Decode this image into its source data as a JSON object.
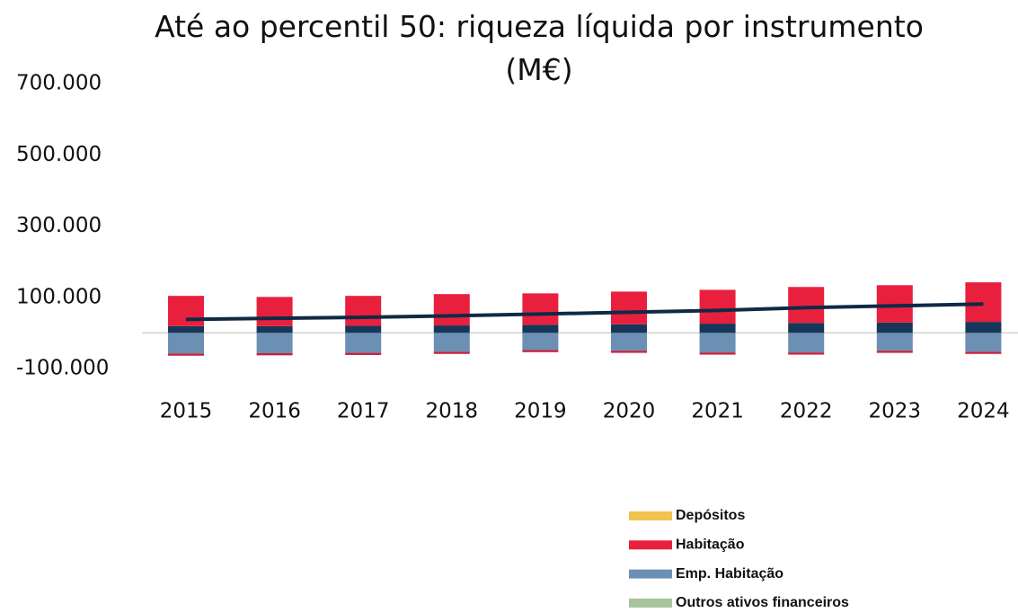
{
  "chart_data": {
    "type": "bar",
    "title": "Até ao percentil 50: riqueza líquida por instrumento (M€)",
    "categories": [
      "2015",
      "2016",
      "2017",
      "2018",
      "2019",
      "2020",
      "2021",
      "2022",
      "2023",
      "2024"
    ],
    "ylim": [
      -100000,
      700000
    ],
    "yticks": [
      {
        "value": -100000,
        "label": "-100.000"
      },
      {
        "value": 100000,
        "label": "100.000"
      },
      {
        "value": 300000,
        "label": "300.000"
      },
      {
        "value": 500000,
        "label": "500.000"
      },
      {
        "value": 700000,
        "label": "700.000"
      }
    ],
    "series": [
      {
        "name": "Depósitos",
        "color": "#f0c44c",
        "values": [
          0,
          0,
          0,
          0,
          0,
          0,
          0,
          0,
          0,
          0
        ]
      },
      {
        "color": "#17375a",
        "values": [
          19000,
          19000,
          20000,
          21000,
          23000,
          24000,
          26000,
          28000,
          29000,
          31000
        ]
      },
      {
        "name": "Habitação",
        "color": "#e8203e",
        "values": [
          85000,
          82000,
          84000,
          88000,
          88000,
          92000,
          95000,
          101000,
          105000,
          111000
        ]
      },
      {
        "name": "Emp. Habitação",
        "color": "#6b90b3",
        "values": [
          -58000,
          -57000,
          -56000,
          -53000,
          -48000,
          -50000,
          -55000,
          -55000,
          -50000,
          -53000
        ]
      },
      {
        "color": "#c8203c",
        "values": [
          -6000,
          -6000,
          -6000,
          -6000,
          -6000,
          -6000,
          -6000,
          -6000,
          -6000,
          -6000
        ]
      },
      {
        "name": "Outros ativos financeiros",
        "color": "#a8c49f",
        "values": [
          0,
          0,
          0,
          0,
          0,
          0,
          0,
          0,
          0,
          0
        ]
      },
      {
        "type": "line",
        "color": "#0e2a45",
        "values": [
          38000,
          41000,
          44000,
          48000,
          53000,
          58000,
          63000,
          71000,
          76000,
          81000
        ]
      }
    ]
  }
}
